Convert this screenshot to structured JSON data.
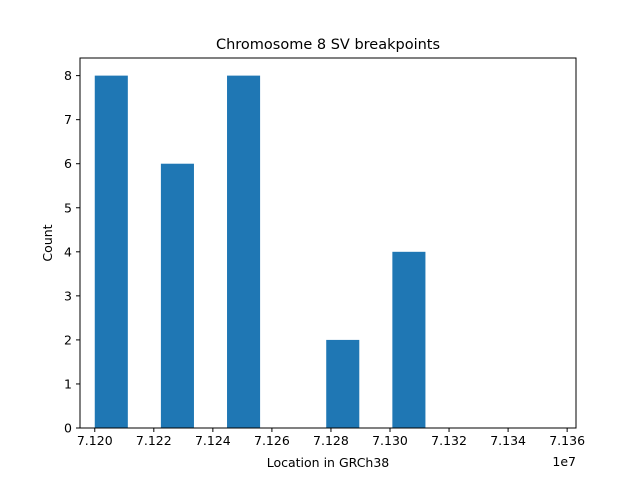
{
  "chart_data": {
    "type": "bar",
    "title": "Chromosome 8 SV breakpoints",
    "xlabel": "Location in GRCh38",
    "ylabel": "Count",
    "x_offset_label": "1e7",
    "xlim": [
      7.1195,
      7.1363
    ],
    "ylim": [
      0,
      8.4
    ],
    "bar_color": "#1f77b4",
    "bins": [
      {
        "x0": 7.12,
        "x1": 7.12112,
        "count": 8
      },
      {
        "x0": 7.12112,
        "x1": 7.12224,
        "count": 0
      },
      {
        "x0": 7.12224,
        "x1": 7.12336,
        "count": 6
      },
      {
        "x0": 7.12336,
        "x1": 7.12448,
        "count": 0
      },
      {
        "x0": 7.12448,
        "x1": 7.1256,
        "count": 8
      },
      {
        "x0": 7.1256,
        "x1": 7.12784,
        "count": 0
      },
      {
        "x0": 7.12784,
        "x1": 7.12896,
        "count": 2
      },
      {
        "x0": 7.12896,
        "x1": 7.13008,
        "count": 0
      },
      {
        "x0": 7.13008,
        "x1": 7.1312,
        "count": 4
      }
    ],
    "xticks": [
      {
        "value": 7.12,
        "label": "7.120"
      },
      {
        "value": 7.122,
        "label": "7.122"
      },
      {
        "value": 7.124,
        "label": "7.124"
      },
      {
        "value": 7.126,
        "label": "7.126"
      },
      {
        "value": 7.128,
        "label": "7.128"
      },
      {
        "value": 7.13,
        "label": "7.130"
      },
      {
        "value": 7.132,
        "label": "7.132"
      },
      {
        "value": 7.134,
        "label": "7.134"
      },
      {
        "value": 7.136,
        "label": "7.136"
      }
    ],
    "yticks": [
      {
        "value": 0,
        "label": "0"
      },
      {
        "value": 1,
        "label": "1"
      },
      {
        "value": 2,
        "label": "2"
      },
      {
        "value": 3,
        "label": "3"
      },
      {
        "value": 4,
        "label": "4"
      },
      {
        "value": 5,
        "label": "5"
      },
      {
        "value": 6,
        "label": "6"
      },
      {
        "value": 7,
        "label": "7"
      },
      {
        "value": 8,
        "label": "8"
      }
    ],
    "grid": false,
    "legend": "none"
  }
}
